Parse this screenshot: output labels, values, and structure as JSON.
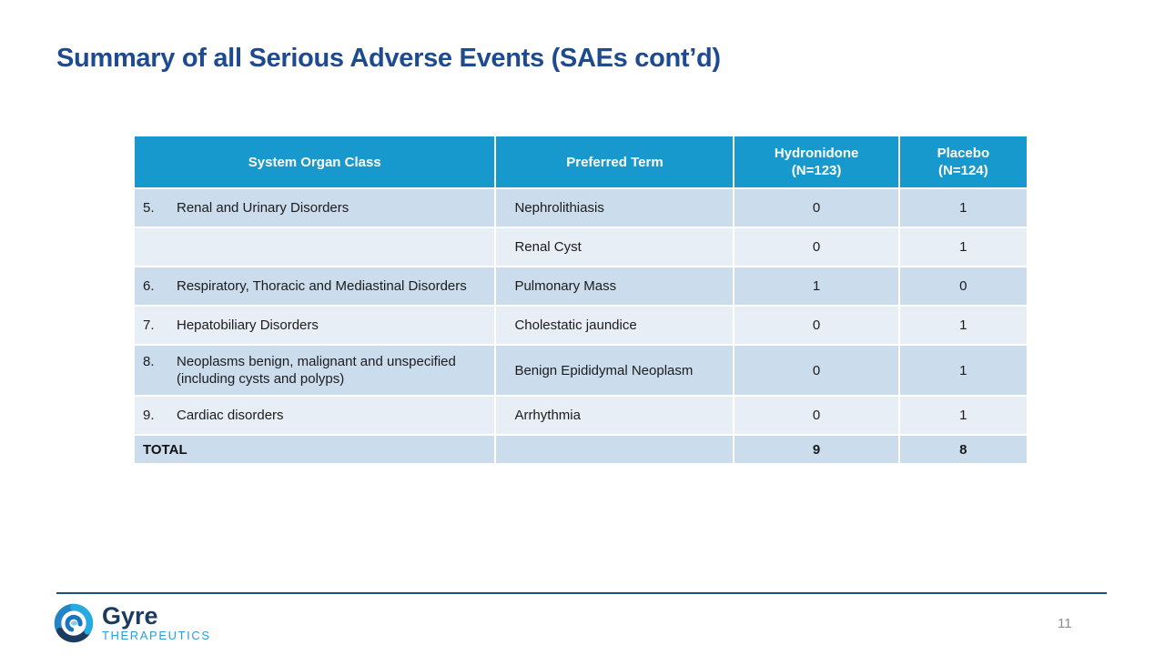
{
  "slide": {
    "title": "Summary of all Serious Adverse Events (SAEs cont’d)",
    "page_number": "11"
  },
  "footer": {
    "logo_name": "Gyre",
    "logo_subtitle": "THERAPEUTICS"
  },
  "colors": {
    "title_text": "#1E4B8F",
    "header_bg": "#1899CE",
    "header_text": "#FFFFFF",
    "row_dark": "#CBDCED",
    "row_light": "#E8EEF6",
    "footer_line": "#1F4E79",
    "logo_navy": "#1B3B5F",
    "logo_blue": "#2D9CDB",
    "page_number_text": "#8C8C8C"
  },
  "table": {
    "headers": [
      {
        "line1": "System Organ Class",
        "line2": ""
      },
      {
        "line1": "Preferred Term",
        "line2": ""
      },
      {
        "line1": "Hydronidone",
        "line2": "(N=123)"
      },
      {
        "line1": "Placebo",
        "line2": "(N=124)"
      }
    ],
    "rows": [
      {
        "num": "5.",
        "soc": "Renal and Urinary Disorders",
        "term": "Nephrolithiasis",
        "hydronidone": "0",
        "placebo": "1",
        "shade": "dark"
      },
      {
        "num": "",
        "soc": "",
        "term": "Renal Cyst",
        "hydronidone": "0",
        "placebo": "1",
        "shade": "light"
      },
      {
        "num": "6.",
        "soc": "Respiratory, Thoracic and Mediastinal Disorders",
        "term": "Pulmonary Mass",
        "hydronidone": "1",
        "placebo": "0",
        "shade": "dark"
      },
      {
        "num": "7.",
        "soc": "Hepatobiliary Disorders",
        "term": "Cholestatic jaundice",
        "hydronidone": "0",
        "placebo": "1",
        "shade": "light"
      },
      {
        "num": "8.",
        "soc": "Neoplasms benign, malignant and unspecified (including cysts and polyps)",
        "term": "Benign Epididymal Neoplasm",
        "hydronidone": "0",
        "placebo": "1",
        "shade": "dark"
      },
      {
        "num": "9.",
        "soc": "Cardiac disorders",
        "term": "Arrhythmia",
        "hydronidone": "0",
        "placebo": "1",
        "shade": "light"
      }
    ],
    "total": {
      "label": "TOTAL",
      "term": "",
      "hydronidone": "9",
      "placebo": "8"
    }
  }
}
